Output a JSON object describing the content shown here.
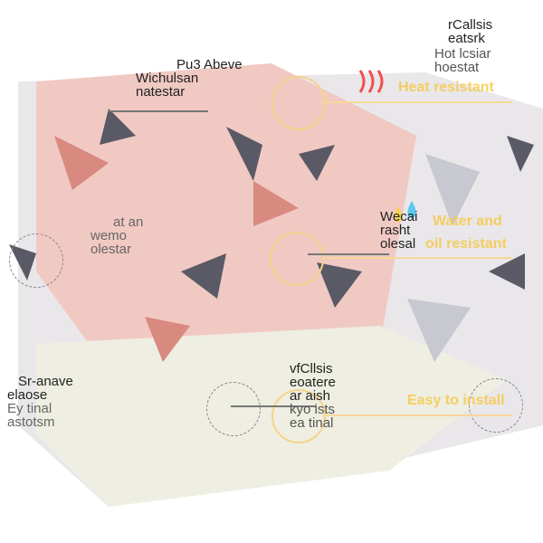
{
  "features": [
    {
      "title": "Heat resistant",
      "note": [
        "rCallsis",
        "eatsrk",
        "Hot lcsiar",
        "hoestat"
      ]
    },
    {
      "title": "Water and",
      "title2": "oil resistant",
      "note": [
        "Wecai",
        "rasht",
        "olesal"
      ]
    },
    {
      "title": "Easy to install",
      "note": [
        "vfCllsis",
        "eoatere",
        "ar aish",
        "kyo ists",
        "ea tinal"
      ]
    }
  ],
  "left_notes": [
    [
      "Pu3 Abeve",
      "Wichulsan",
      "natestar"
    ],
    [
      "at an",
      "wemo",
      "olestar"
    ],
    [
      "Sr-anave",
      "elaose",
      "Ey tinal",
      "astotsm"
    ]
  ],
  "colors": {
    "accent": "#f7c94a",
    "pattern": "#e8a9a0",
    "dark": "#5a5a66"
  }
}
